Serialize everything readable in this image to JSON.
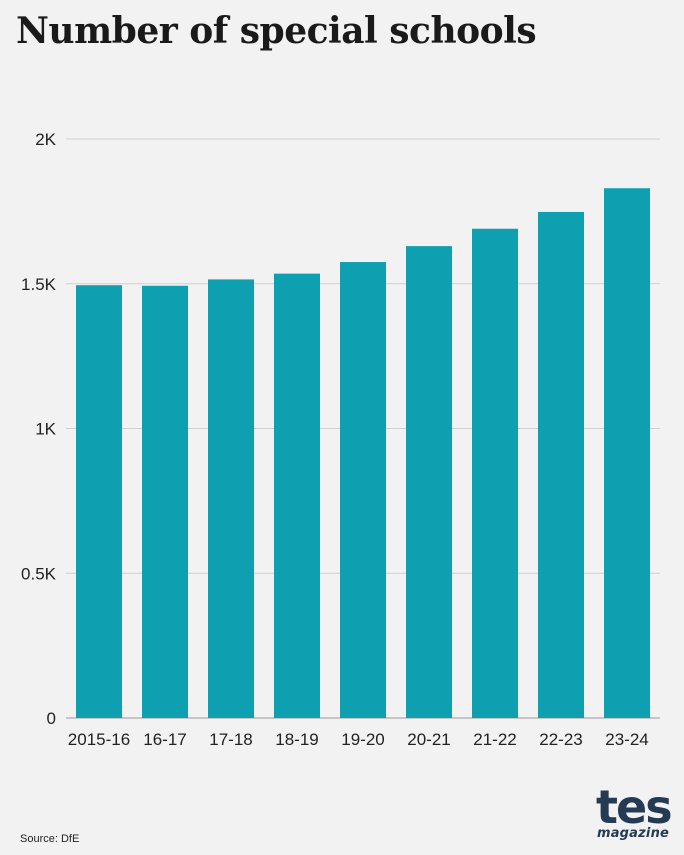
{
  "chart_data": {
    "type": "bar",
    "title": "Number of special schools",
    "categories": [
      "2015-16",
      "16-17",
      "17-18",
      "18-19",
      "19-20",
      "20-21",
      "21-22",
      "22-23",
      "23-24"
    ],
    "values": [
      1495,
      1493,
      1515,
      1535,
      1575,
      1630,
      1690,
      1748,
      1830
    ],
    "ylim": [
      0,
      2000
    ],
    "yticks": [
      0,
      500,
      1000,
      1500,
      2000
    ],
    "ytick_labels": [
      "0",
      "0.5K",
      "1K",
      "1.5K",
      "2K"
    ],
    "xlabel": "",
    "ylabel": "",
    "grid": true,
    "bar_color": "#0ea0b0"
  },
  "source": "Source: DfE",
  "logo": {
    "main": "tes",
    "sub": "magazine"
  },
  "colors": {
    "background": "#f2f2f2",
    "gridline": "#d0d0d0",
    "logo": "#253a53"
  }
}
